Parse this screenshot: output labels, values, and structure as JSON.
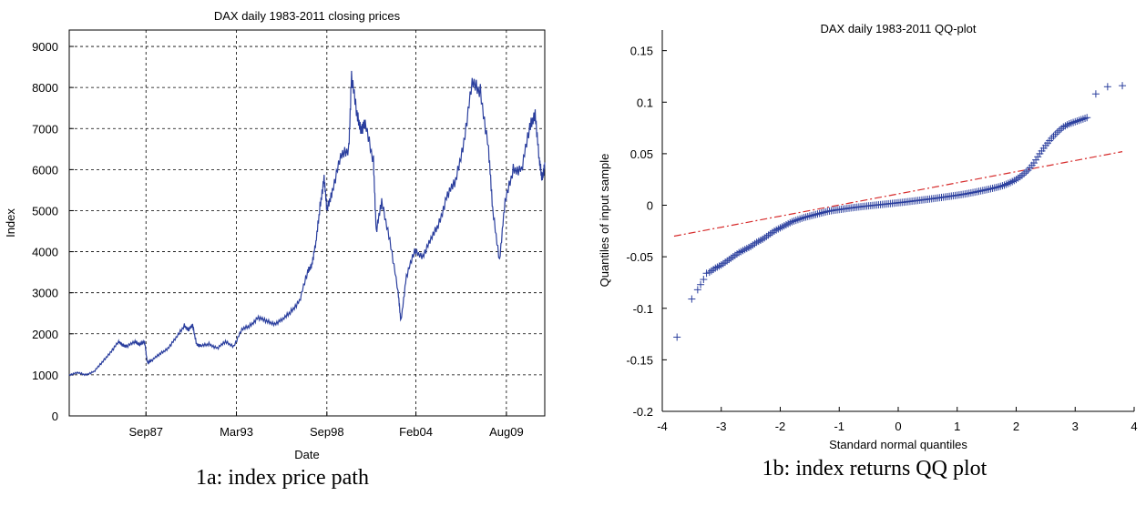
{
  "chart_data": [
    {
      "type": "line",
      "title": "DAX daily 1983-2011 closing prices",
      "xlabel": "Date",
      "ylabel": "Index",
      "xlim": [
        "1983-01",
        "2011-12"
      ],
      "ylim": [
        0,
        9400
      ],
      "yticks": [
        0,
        1000,
        2000,
        3000,
        4000,
        5000,
        6000,
        7000,
        8000,
        9000
      ],
      "xticks": [
        {
          "date": "1987-09",
          "label": "Sep87"
        },
        {
          "date": "1993-03",
          "label": "Mar93"
        },
        {
          "date": "1998-09",
          "label": "Sep98"
        },
        {
          "date": "2004-02",
          "label": "Feb04"
        },
        {
          "date": "2009-08",
          "label": "Aug09"
        }
      ],
      "grid": true,
      "line_color": "#2b3f9e",
      "series": [
        {
          "x": [
            "1983-01",
            "1983-07",
            "1984-01",
            "1984-07",
            "1985-01",
            "1985-07",
            "1986-01",
            "1986-04",
            "1986-07",
            "1987-01",
            "1987-04",
            "1987-08",
            "1987-10",
            "1988-01",
            "1988-07",
            "1989-01",
            "1989-07",
            "1990-01",
            "1990-04",
            "1990-07",
            "1990-10",
            "1991-01",
            "1991-07",
            "1992-01",
            "1992-07",
            "1993-01",
            "1993-07",
            "1994-01",
            "1994-07",
            "1995-01",
            "1995-07",
            "1996-01",
            "1996-07",
            "1997-01",
            "1997-07",
            "1997-10",
            "1998-01",
            "1998-04",
            "1998-07",
            "1998-09",
            "1999-01",
            "1999-07",
            "2000-01",
            "2000-03",
            "2000-07",
            "2000-10",
            "2001-01",
            "2001-07",
            "2001-09",
            "2002-01",
            "2002-07",
            "2003-01",
            "2003-03",
            "2003-07",
            "2004-01",
            "2004-07",
            "2005-01",
            "2005-07",
            "2006-01",
            "2006-07",
            "2007-01",
            "2007-07",
            "2008-01",
            "2008-07",
            "2008-10",
            "2009-03",
            "2009-07",
            "2010-01",
            "2010-07",
            "2011-01",
            "2011-05",
            "2011-08",
            "2011-10",
            "2011-12"
          ],
          "y": [
            1000,
            1050,
            1000,
            1080,
            1300,
            1550,
            1800,
            1720,
            1700,
            1800,
            1750,
            1800,
            1300,
            1350,
            1500,
            1650,
            1900,
            2200,
            2100,
            2200,
            1750,
            1700,
            1750,
            1650,
            1800,
            1700,
            2100,
            2200,
            2400,
            2300,
            2250,
            2350,
            2550,
            2800,
            3500,
            3700,
            4200,
            5100,
            5800,
            5000,
            5500,
            6300,
            6500,
            8300,
            7300,
            7000,
            7100,
            6200,
            4500,
            5200,
            4300,
            3000,
            2300,
            3400,
            4000,
            3900,
            4300,
            4700,
            5400,
            5700,
            6700,
            8100,
            7900,
            6500,
            5000,
            3800,
            5200,
            6000,
            6000,
            7000,
            7400,
            6200,
            5800,
            6100
          ]
        }
      ]
    },
    {
      "type": "scatter",
      "title": "DAX daily 1983-2011 QQ-plot",
      "xlabel": "Standard normal quantiles",
      "ylabel": "Quantiles of input sample",
      "xlim": [
        -4,
        4
      ],
      "ylim": [
        -0.2,
        0.17
      ],
      "xticks": [
        -4,
        -3,
        -2,
        -1,
        0,
        1,
        2,
        3,
        4
      ],
      "yticks": [
        -0.2,
        -0.15,
        -0.1,
        -0.05,
        0,
        0.05,
        0.1,
        0.15
      ],
      "marker_color": "#2b3f9e",
      "reference_line": {
        "color": "#d62b2b",
        "style": "dash-dot",
        "x": [
          -3.8,
          3.8
        ],
        "y": [
          -0.03,
          0.052
        ]
      },
      "series": [
        {
          "x": [
            -3.75,
            -3.5,
            -3.4,
            -3.35,
            -3.3,
            -3.25,
            -3.2,
            -3.1,
            -3.0,
            -2.9,
            -2.8,
            -2.7,
            -2.6,
            -2.5,
            -2.4,
            -2.3,
            -2.2,
            -2.1,
            -2.0,
            -1.9,
            -1.8,
            -1.7,
            -1.6,
            -1.5,
            -1.4,
            -1.3,
            -1.2,
            -1.1,
            -1.0,
            -0.9,
            -0.8,
            -0.7,
            -0.6,
            -0.5,
            -0.4,
            -0.3,
            -0.2,
            -0.1,
            0.0,
            0.1,
            0.2,
            0.3,
            0.4,
            0.5,
            0.6,
            0.7,
            0.8,
            0.9,
            1.0,
            1.1,
            1.2,
            1.3,
            1.4,
            1.5,
            1.6,
            1.7,
            1.8,
            1.9,
            2.0,
            2.1,
            2.2,
            2.3,
            2.4,
            2.5,
            2.6,
            2.7,
            2.8,
            2.9,
            3.0,
            3.1,
            3.2,
            3.35,
            3.55,
            3.8
          ],
          "y": [
            -0.128,
            -0.091,
            -0.082,
            -0.077,
            -0.072,
            -0.066,
            -0.065,
            -0.061,
            -0.058,
            -0.054,
            -0.05,
            -0.046,
            -0.043,
            -0.04,
            -0.036,
            -0.033,
            -0.029,
            -0.025,
            -0.022,
            -0.019,
            -0.016,
            -0.014,
            -0.012,
            -0.0105,
            -0.009,
            -0.0075,
            -0.006,
            -0.005,
            -0.0042,
            -0.0034,
            -0.0026,
            -0.0019,
            -0.0012,
            -0.0006,
            0.0,
            0.0006,
            0.0012,
            0.0018,
            0.0024,
            0.003,
            0.0037,
            0.0044,
            0.0051,
            0.0058,
            0.0065,
            0.0073,
            0.0081,
            0.0089,
            0.0097,
            0.0106,
            0.0116,
            0.0127,
            0.0139,
            0.0151,
            0.0164,
            0.0178,
            0.0195,
            0.022,
            0.025,
            0.029,
            0.034,
            0.041,
            0.05,
            0.058,
            0.065,
            0.071,
            0.076,
            0.079,
            0.081,
            0.083,
            0.085,
            0.108,
            0.115,
            0.116
          ]
        }
      ]
    }
  ],
  "captions": {
    "left": "1a: index price path",
    "right": "1b: index returns QQ plot"
  }
}
